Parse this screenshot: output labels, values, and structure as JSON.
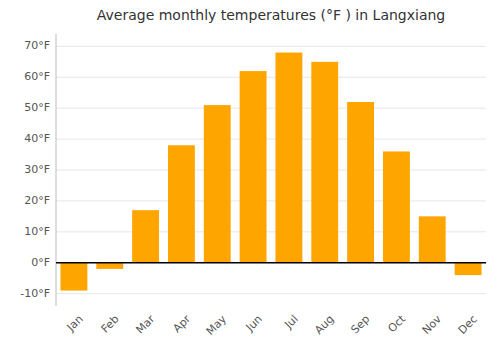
{
  "chart_data": {
    "type": "bar",
    "title": "Average monthly temperatures (°F ) in Langxiang",
    "categories": [
      "Jan",
      "Feb",
      "Mar",
      "Apr",
      "May",
      "Jun",
      "Jul",
      "Aug",
      "Sep",
      "Oct",
      "Nov",
      "Dec"
    ],
    "values": [
      -9,
      -2,
      17,
      38,
      51,
      62,
      68,
      65,
      52,
      36,
      15,
      -4
    ],
    "color": "#FFA500",
    "ylim": [
      -14,
      74
    ],
    "yticks": [
      {
        "value": -10,
        "label": "-10°F"
      },
      {
        "value": 0,
        "label": "0°F"
      },
      {
        "value": 10,
        "label": "10°F"
      },
      {
        "value": 20,
        "label": "20°F"
      },
      {
        "value": 30,
        "label": "30°F"
      },
      {
        "value": 40,
        "label": "40°F"
      },
      {
        "value": 50,
        "label": "50°F"
      },
      {
        "value": 60,
        "label": "60°F"
      },
      {
        "value": 70,
        "label": "70°F"
      }
    ],
    "grid": true
  }
}
